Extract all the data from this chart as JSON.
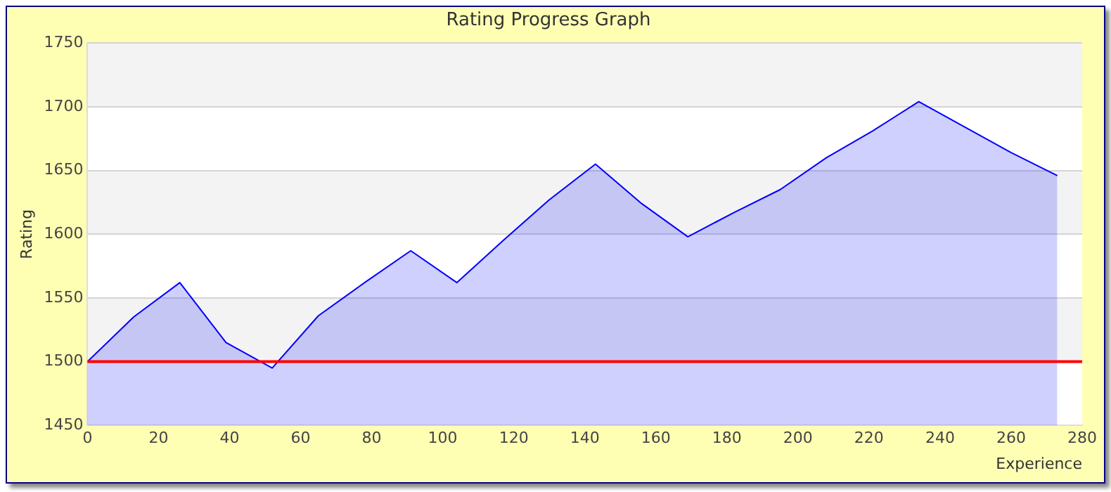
{
  "chart_data": {
    "type": "area",
    "title": "Rating Progress Graph",
    "xlabel": "Experience",
    "ylabel": "Rating",
    "x": [
      0,
      13,
      26,
      39,
      52,
      65,
      78,
      91,
      104,
      117,
      130,
      143,
      156,
      169,
      182,
      195,
      208,
      221,
      234,
      247,
      260,
      273
    ],
    "series": [
      {
        "color": "#0000ff",
        "values": [
          1500,
          1535,
          1562,
          1515,
          1495,
          1536,
          1562,
          1587,
          1562,
          1595,
          1627,
          1655,
          1624,
          1598,
          1617,
          1635,
          1660,
          1681,
          1704,
          1684,
          1664,
          1646
        ]
      }
    ],
    "xlim": [
      0,
      280
    ],
    "xticks": [
      0,
      20,
      40,
      60,
      80,
      100,
      120,
      140,
      160,
      180,
      200,
      220,
      240,
      260,
      280
    ],
    "ylim": [
      1450,
      1750
    ],
    "yticks": [
      1450,
      1500,
      1550,
      1600,
      1650,
      1700,
      1750
    ],
    "ref_lines": [
      {
        "axis": "y",
        "value": 1500,
        "color": "#ff0000"
      }
    ],
    "grid": "y",
    "legend": false,
    "marker": "none",
    "line_style": "solid"
  }
}
